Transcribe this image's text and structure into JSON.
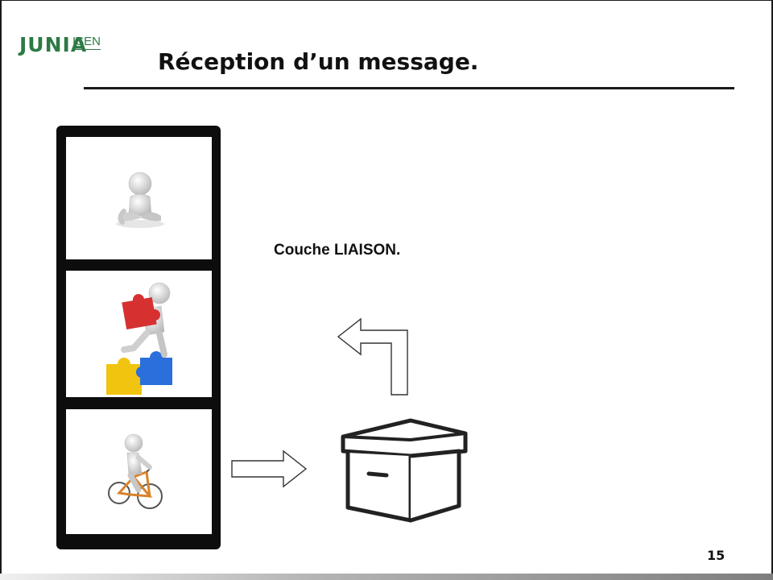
{
  "header": {
    "logo_brand": "JUNIA",
    "logo_school": "ISEN",
    "title": "Réception d’un message."
  },
  "main": {
    "layer_label": "Couche LIAISON."
  },
  "footer": {
    "page_number": "15"
  },
  "icons": [
    "sitting-figure-icon",
    "puzzle-carrier-figure-icon",
    "cyclist-figure-icon",
    "arrow-up-left-icon",
    "arrow-right-icon",
    "box-icon"
  ],
  "colors": {
    "brand_green": "#2d7a45",
    "frame_black": "#0d0d0d"
  }
}
